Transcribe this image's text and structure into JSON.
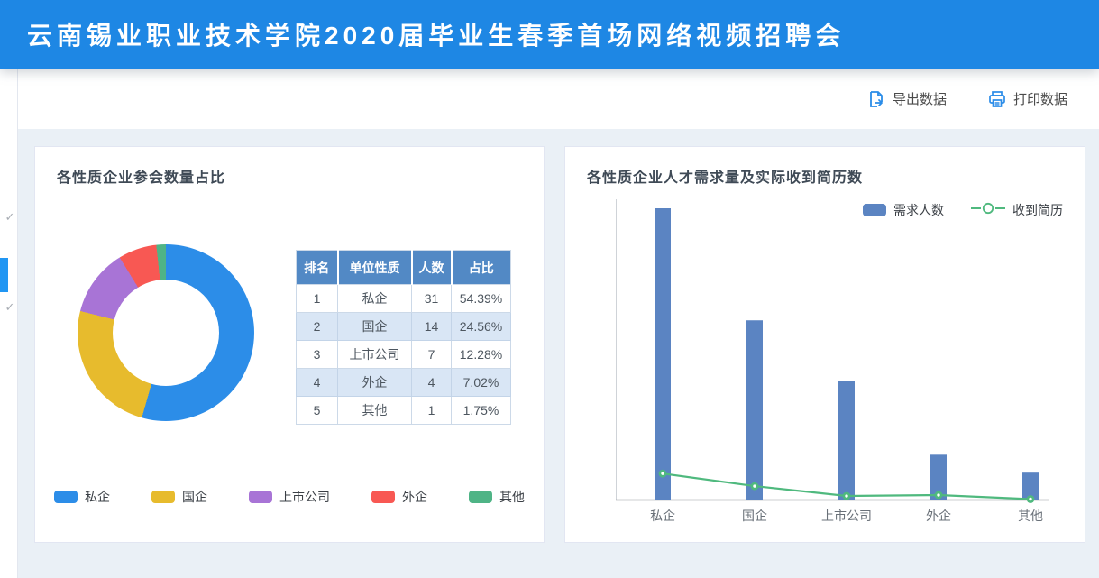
{
  "header": {
    "title": "云南锡业职业技术学院2020届毕业生春季首场网络视频招聘会",
    "accent_color": "#1e87e4"
  },
  "toolbar": {
    "export_label": "导出数据",
    "print_label": "打印数据",
    "icon_color": "#2a8ce8"
  },
  "sidebar": {
    "check_glyph": "✓",
    "active_indicator_color": "#2196f3"
  },
  "left_panel": {
    "title": "各性质企业参会数量占比",
    "table": {
      "headers": [
        "排名",
        "单位性质",
        "人数",
        "占比"
      ],
      "rows": [
        [
          "1",
          "私企",
          "31",
          "54.39%"
        ],
        [
          "2",
          "国企",
          "14",
          "24.56%"
        ],
        [
          "3",
          "上市公司",
          "7",
          "12.28%"
        ],
        [
          "4",
          "外企",
          "4",
          "7.02%"
        ],
        [
          "5",
          "其他",
          "1",
          "1.75%"
        ]
      ],
      "header_bg": "#5289c5",
      "zebra_bg": "#d9e6f5"
    }
  },
  "right_panel": {
    "title": "各性质企业人才需求量及实际收到简历数"
  },
  "chart_data": [
    {
      "type": "pie",
      "title": "各性质企业参会数量占比",
      "donut": true,
      "labels": [
        "私企",
        "国企",
        "上市公司",
        "外企",
        "其他"
      ],
      "values": [
        31,
        14,
        7,
        4,
        1
      ],
      "percents": [
        54.39,
        24.56,
        12.28,
        7.02,
        1.75
      ],
      "colors": [
        "#2c8de8",
        "#e7bb2d",
        "#a874d6",
        "#f85853",
        "#4fb486"
      ],
      "legend_position": "bottom"
    },
    {
      "type": "bar",
      "title": "各性质企业人才需求量及实际收到简历数",
      "categories": [
        "私企",
        "国企",
        "上市公司",
        "外企",
        "其他"
      ],
      "series": [
        {
          "name": "需求人数",
          "type": "bar",
          "values": [
            650,
            400,
            265,
            100,
            60
          ],
          "color": "#5b84c2"
        },
        {
          "name": "收到简历",
          "type": "line",
          "values": [
            58,
            30,
            8,
            10,
            1
          ],
          "color": "#4fb97e"
        }
      ],
      "ylim": [
        0,
        650
      ],
      "grid": false,
      "y_axis_labels": false,
      "legend_position": "top-right"
    }
  ]
}
